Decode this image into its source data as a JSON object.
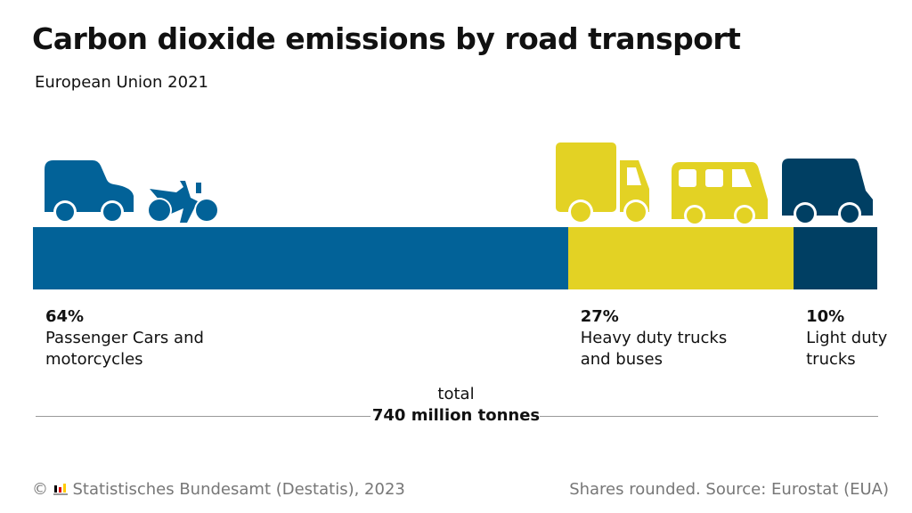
{
  "title": "Carbon dioxide emissions by road transport",
  "subtitle": "European Union 2021",
  "chart_data": {
    "type": "bar",
    "orientation": "horizontal-stacked",
    "unit": "%",
    "categories": [
      "Passenger Cars and motorcycles",
      "Heavy duty trucks and buses",
      "Light duty trucks"
    ],
    "values": [
      64,
      27,
      10
    ],
    "value_labels": [
      "64%",
      "27%",
      "10%"
    ],
    "colors": [
      "#026298",
      "#e3d224",
      "#003f63"
    ],
    "icons": [
      [
        "car-icon",
        "motorcycle-icon"
      ],
      [
        "truck-icon",
        "bus-icon"
      ],
      [
        "van-icon"
      ]
    ]
  },
  "total": {
    "label": "total",
    "value": "740 million tonnes"
  },
  "footer": {
    "copyright": "©",
    "source_left": "Statistisches Bundesamt (Destatis), 2023",
    "source_right": "Shares rounded. Source: Eurostat (EUA)"
  }
}
